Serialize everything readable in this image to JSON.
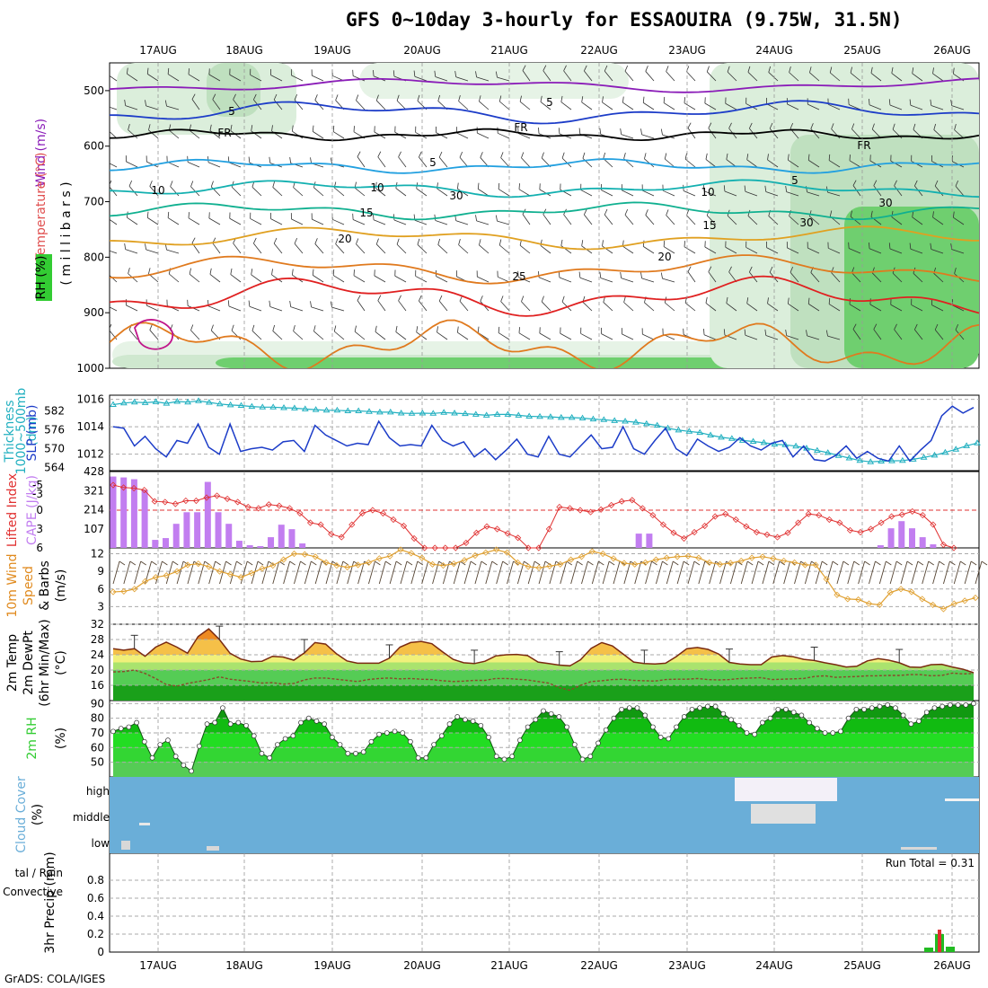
{
  "title": "GFS 0~10day 3-hourly for ESSAOUIRA (9.75W, 31.5N)",
  "credit": "GrADS: COLA/IGES",
  "colors": {
    "rh_green": "#33cc33",
    "temp_orange": "#e08a1e",
    "wind_purple": "#8a1cb8",
    "slp_blue": "#1c3cc8",
    "thick_cyan": "#22b0c0",
    "cape_purple": "#c27ef0",
    "li_red": "#e03030",
    "wind_speed": "#e0a030",
    "cloud_blue": "#6aaed8",
    "precip_green": "#22bb22",
    "precip_red": "#e03030"
  },
  "dates": [
    "17AUG",
    "18AUG",
    "19AUG",
    "20AUG",
    "21AUG",
    "22AUG",
    "23AUG",
    "24AUG",
    "25AUG",
    "26AUG"
  ],
  "chart_data": [
    {
      "type": "heatmap",
      "name": "upper-air",
      "ylabel_parts": [
        "Wind (m/s)",
        "Temperature (°C)",
        "RH (%)",
        "( m i l l i b a r s )"
      ],
      "y_ticks": [
        500,
        600,
        700,
        800,
        900,
        1000
      ],
      "ylim": [
        1000,
        450
      ],
      "contour_labels": [
        "5",
        "5",
        "FR",
        "FR",
        "FR",
        "5",
        "10",
        "10",
        "15",
        "15",
        "20",
        "20",
        "25",
        "5",
        "30",
        "30",
        "30",
        "10"
      ]
    },
    {
      "type": "line",
      "name": "thickness-slp",
      "ylabel_parts": [
        "Thickness",
        "1000~500mb",
        "(dm)",
        "SLP (mb)"
      ],
      "thick_ticks": [
        564,
        570,
        576,
        582
      ],
      "slp_ticks": [
        1012,
        1014,
        1016
      ],
      "ylim_slp": [
        1010.8,
        1016.3
      ],
      "series": [
        {
          "name": "SLP (mb)",
          "values": [
            1014,
            1013.9,
            1012.6,
            1013.3,
            1012.4,
            1011.8,
            1013.0,
            1012.8,
            1014.2,
            1012.5,
            1012.0,
            1014.2,
            1012.2,
            1012.4,
            1012.5,
            1012.3,
            1012.9,
            1013.0,
            1012.2,
            1014.1,
            1013.4,
            1013.0,
            1012.6,
            1012.8,
            1012.7,
            1014.4,
            1013.2,
            1012.6,
            1012.7,
            1012.6,
            1014.1,
            1013.0,
            1012.6,
            1012.9,
            1011.8,
            1012.4,
            1011.6,
            1012.3,
            1013.1,
            1012.0,
            1011.8,
            1013.3,
            1012.0,
            1011.8,
            1012.6,
            1013.4,
            1012.4,
            1012.5,
            1014.0,
            1012.4,
            1012.0,
            1013.0,
            1013.9,
            1012.4,
            1011.9,
            1013.1,
            1012.6,
            1012.2,
            1012.5,
            1013.2,
            1012.6,
            1012.3,
            1012.8,
            1013.0,
            1011.8,
            1012.6,
            1011.6,
            1011.5,
            1011.9,
            1012.6,
            1011.7,
            1012.2,
            1011.7,
            1011.5,
            1012.6,
            1011.5,
            1012.3,
            1013.0,
            1014.8,
            1015.5,
            1015.0,
            1015.4
          ]
        },
        {
          "name": "Thickness (dm)",
          "values": [
            584,
            584.5,
            584.8,
            584.6,
            584.9,
            584.4,
            585,
            584.8,
            585.2,
            584.7,
            584.2,
            583.9,
            583.7,
            583.4,
            583.2,
            583.2,
            583.0,
            582.9,
            582.6,
            582.4,
            582.2,
            582.2,
            582.0,
            582.0,
            581.8,
            581.6,
            581.6,
            581.3,
            581.2,
            581.3,
            581.2,
            581.5,
            581.3,
            581.1,
            580.9,
            580.6,
            580.9,
            580.9,
            580.6,
            580.3,
            580.2,
            580.1,
            579.9,
            579.9,
            579.7,
            579.4,
            579.2,
            578.9,
            578.7,
            578.4,
            577.9,
            577.4,
            576.5,
            575.9,
            575.5,
            575.1,
            574.3,
            573.6,
            573.2,
            572.6,
            572.3,
            571.9,
            571.4,
            571.2,
            570.8,
            570.1,
            569.4,
            568.7,
            567.8,
            567.0,
            566.2,
            565.8,
            566.0,
            566.1,
            566.2,
            566.6,
            567.2,
            567.9,
            568.8,
            569.8,
            570.9,
            571.8
          ]
        }
      ]
    },
    {
      "type": "bar",
      "name": "cape-li",
      "ylabel_parts": [
        "CAPE (J/kg)",
        "Lifted Index"
      ],
      "cape_ticks": [
        107,
        214,
        321,
        428
      ],
      "li_ticks": [
        "-5",
        "-3",
        "0",
        "3",
        "6"
      ],
      "series": [
        {
          "name": "CAPE (J/kg)",
          "values": [
            400,
            395,
            385,
            325,
            45,
            55,
            135,
            200,
            200,
            370,
            200,
            135,
            40,
            15,
            10,
            60,
            130,
            105,
            25,
            0,
            0,
            0,
            0,
            0,
            0,
            0,
            0,
            0,
            0,
            0,
            0,
            0,
            0,
            0,
            0,
            0,
            0,
            0,
            0,
            0,
            0,
            0,
            0,
            0,
            0,
            0,
            0,
            0,
            0,
            0,
            80,
            80,
            0,
            0,
            0,
            0,
            0,
            0,
            0,
            0,
            0,
            0,
            0,
            0,
            0,
            0,
            0,
            0,
            0,
            0,
            0,
            0,
            0,
            15,
            110,
            150,
            110,
            60,
            20,
            0,
            0,
            0
          ]
        },
        {
          "name": "Lifted Index",
          "values": [
            -4,
            -3.6,
            -3.5,
            -3.2,
            -1.4,
            -1.3,
            -1.0,
            -1.5,
            -1.5,
            -2.0,
            -2.3,
            -1.8,
            -1.3,
            -0.5,
            -0.3,
            -0.9,
            -0.7,
            -0.3,
            0.5,
            2.0,
            2.3,
            3.8,
            4.3,
            2.3,
            0.5,
            0,
            0.5,
            1.5,
            2.5,
            4.5,
            6.5,
            6.5,
            6.0,
            6.4,
            5.2,
            3.6,
            2.6,
            3.0,
            3.7,
            4.4,
            7.0,
            6.5,
            3.0,
            -0.5,
            -0.3,
            0,
            0.3,
            -0.1,
            -0.8,
            -1.4,
            -1.6,
            -0.3,
            0.8,
            2.3,
            3.6,
            4.5,
            3.5,
            2.5,
            1.0,
            0.6,
            1.5,
            2.6,
            3.5,
            3.9,
            4.3,
            3.6,
            2.0,
            0.6,
            0.8,
            1.5,
            2.0,
            3.2,
            3.5,
            3.0,
            2.0,
            1.0,
            0.7,
            0.2,
            0.8,
            2.3,
            5.5,
            6.5
          ]
        }
      ]
    },
    {
      "type": "line",
      "name": "wind-10m",
      "ylabel_parts": [
        "10m Wind",
        "Speed",
        "& Barbs",
        "(m/s)"
      ],
      "y_ticks": [
        3,
        6,
        9,
        12
      ],
      "ylim": [
        0,
        13
      ],
      "series": [
        {
          "name": "10m Wind Speed (m/s)",
          "values": [
            5.5,
            5.6,
            6.0,
            7.3,
            8.0,
            8.3,
            9.0,
            10.1,
            10.3,
            9.8,
            9.0,
            8.5,
            8.0,
            8.7,
            9.5,
            10.0,
            11.0,
            12.0,
            11.9,
            11.5,
            10.5,
            10.0,
            9.7,
            10.1,
            10.5,
            11.2,
            11.6,
            12.7,
            12.1,
            11.3,
            10.2,
            10.0,
            10.3,
            10.9,
            11.7,
            12.2,
            12.7,
            12.2,
            10.5,
            9.8,
            9.6,
            9.9,
            10.2,
            11.0,
            11.5,
            12.4,
            12.0,
            11.2,
            10.4,
            10.2,
            10.5,
            11.0,
            11.3,
            11.5,
            11.6,
            11.3,
            10.5,
            10.2,
            10.4,
            10.8,
            11.3,
            11.5,
            11.2,
            10.8,
            10.5,
            10.1,
            10.1,
            7.7,
            5.0,
            4.3,
            4.2,
            3.5,
            3.3,
            5.4,
            6.0,
            5.5,
            4.3,
            3.3,
            2.6,
            3.5,
            4.0,
            4.5
          ]
        }
      ]
    },
    {
      "type": "area",
      "name": "temp-2m",
      "ylabel_parts": [
        "2m Temp",
        "2m DewPt",
        "(6hr Min/Max)",
        "(°C)"
      ],
      "y_ticks": [
        16,
        20,
        24,
        28,
        32
      ],
      "ylim": [
        12,
        32
      ],
      "series": [
        {
          "name": "2m Temp (°C)",
          "values": [
            25.6,
            25.2,
            25.6,
            23.6,
            26.0,
            27.3,
            26.0,
            24.4,
            28.8,
            30.8,
            28.0,
            24.4,
            22.9,
            22.2,
            22.3,
            23.6,
            23.4,
            22.6,
            24.5,
            27.2,
            26.8,
            24.3,
            22.4,
            21.8,
            21.8,
            21.8,
            23.1,
            26.0,
            27.2,
            27.5,
            26.9,
            24.8,
            22.8,
            21.9,
            21.7,
            22.3,
            23.7,
            24.0,
            24.1,
            23.8,
            22.1,
            21.7,
            21.3,
            21.1,
            22.7,
            25.7,
            27.2,
            26.3,
            24.2,
            22.1,
            21.7,
            21.6,
            21.8,
            23.5,
            25.6,
            25.9,
            25.4,
            24.2,
            22.0,
            21.6,
            21.4,
            21.4,
            23.4,
            23.8,
            23.5,
            22.8,
            22.5,
            21.9,
            21.4,
            20.8,
            21.0,
            22.4,
            23.0,
            22.6,
            21.9,
            20.8,
            20.7,
            21.4,
            21.5,
            20.8,
            20.2,
            19.3
          ]
        },
        {
          "name": "2m DewPt (°C)",
          "values": [
            19.5,
            19.6,
            20.0,
            19.1,
            17.8,
            16.2,
            15.8,
            16.5,
            17.0,
            17.5,
            18.2,
            17.6,
            17.3,
            17.0,
            16.6,
            16.7,
            16.3,
            16.5,
            17.4,
            17.9,
            17.9,
            17.6,
            17.3,
            17.0,
            17.5,
            17.8,
            17.9,
            17.7,
            17.8,
            17.6,
            17.5,
            17.2,
            17.0,
            17.1,
            17.3,
            17.3,
            17.8,
            17.8,
            17.6,
            17.4,
            17.0,
            16.6,
            15.4,
            14.7,
            16.0,
            17.0,
            17.2,
            17.5,
            17.6,
            17.3,
            17.2,
            17.1,
            17.5,
            17.6,
            17.6,
            17.8,
            17.5,
            17.4,
            17.5,
            17.8,
            17.9,
            18.0,
            17.5,
            17.6,
            17.7,
            17.8,
            18.3,
            18.5,
            18.1,
            18.2,
            18.3,
            18.5,
            18.5,
            18.6,
            18.6,
            18.8,
            18.8,
            18.5,
            18.6,
            19.2,
            19.0,
            19.1
          ]
        }
      ]
    },
    {
      "type": "area",
      "name": "rh-2m",
      "ylabel_parts": [
        "2m RH",
        "(%)"
      ],
      "y_ticks": [
        50,
        60,
        70,
        80,
        90
      ],
      "ylim": [
        40,
        92
      ],
      "series": [
        {
          "name": "2m RH (%)",
          "values": [
            71,
            73,
            74,
            77,
            64,
            53,
            62,
            65,
            54,
            48,
            44,
            61,
            76,
            77,
            87,
            76,
            77,
            75,
            68,
            56,
            53,
            62,
            66,
            68,
            77,
            80,
            78,
            76,
            67,
            62,
            56,
            56,
            57,
            64,
            69,
            70,
            71,
            70,
            64,
            53,
            53,
            62,
            68,
            76,
            81,
            79,
            78,
            75,
            67,
            54,
            52,
            54,
            65,
            74,
            79,
            85,
            83,
            81,
            74,
            62,
            52,
            54,
            63,
            72,
            80,
            86,
            87,
            87,
            82,
            74,
            67,
            66,
            74,
            81,
            86,
            87,
            88,
            88,
            83,
            79,
            75,
            70,
            69,
            77,
            80,
            86,
            86,
            84,
            82,
            77,
            73,
            70,
            70,
            71,
            80,
            86,
            86,
            87,
            88,
            89,
            87,
            82,
            76,
            78,
            84,
            87,
            88,
            89,
            89,
            89,
            90
          ]
        }
      ]
    },
    {
      "type": "heatmap",
      "name": "cloud-cover",
      "ylabel_parts": [
        "Cloud Cover",
        "(%)"
      ],
      "levels": [
        "high",
        "middle",
        "low"
      ]
    },
    {
      "type": "bar",
      "name": "precip-3hr",
      "ylabel_parts": [
        "3hr Precip (mm)",
        "tal / Rain",
        "Convective"
      ],
      "run_total": "Run Total = 0.31",
      "y_ticks": [
        "0",
        "0.2",
        "0.4",
        "0.6",
        "0.8"
      ],
      "ylim": [
        0,
        1
      ],
      "series": [
        {
          "name": "Total / Rain",
          "values": [
            0.05,
            0.2,
            0.06
          ]
        },
        {
          "name": "Convective",
          "values": [
            0,
            0.25,
            0
          ]
        }
      ]
    }
  ]
}
